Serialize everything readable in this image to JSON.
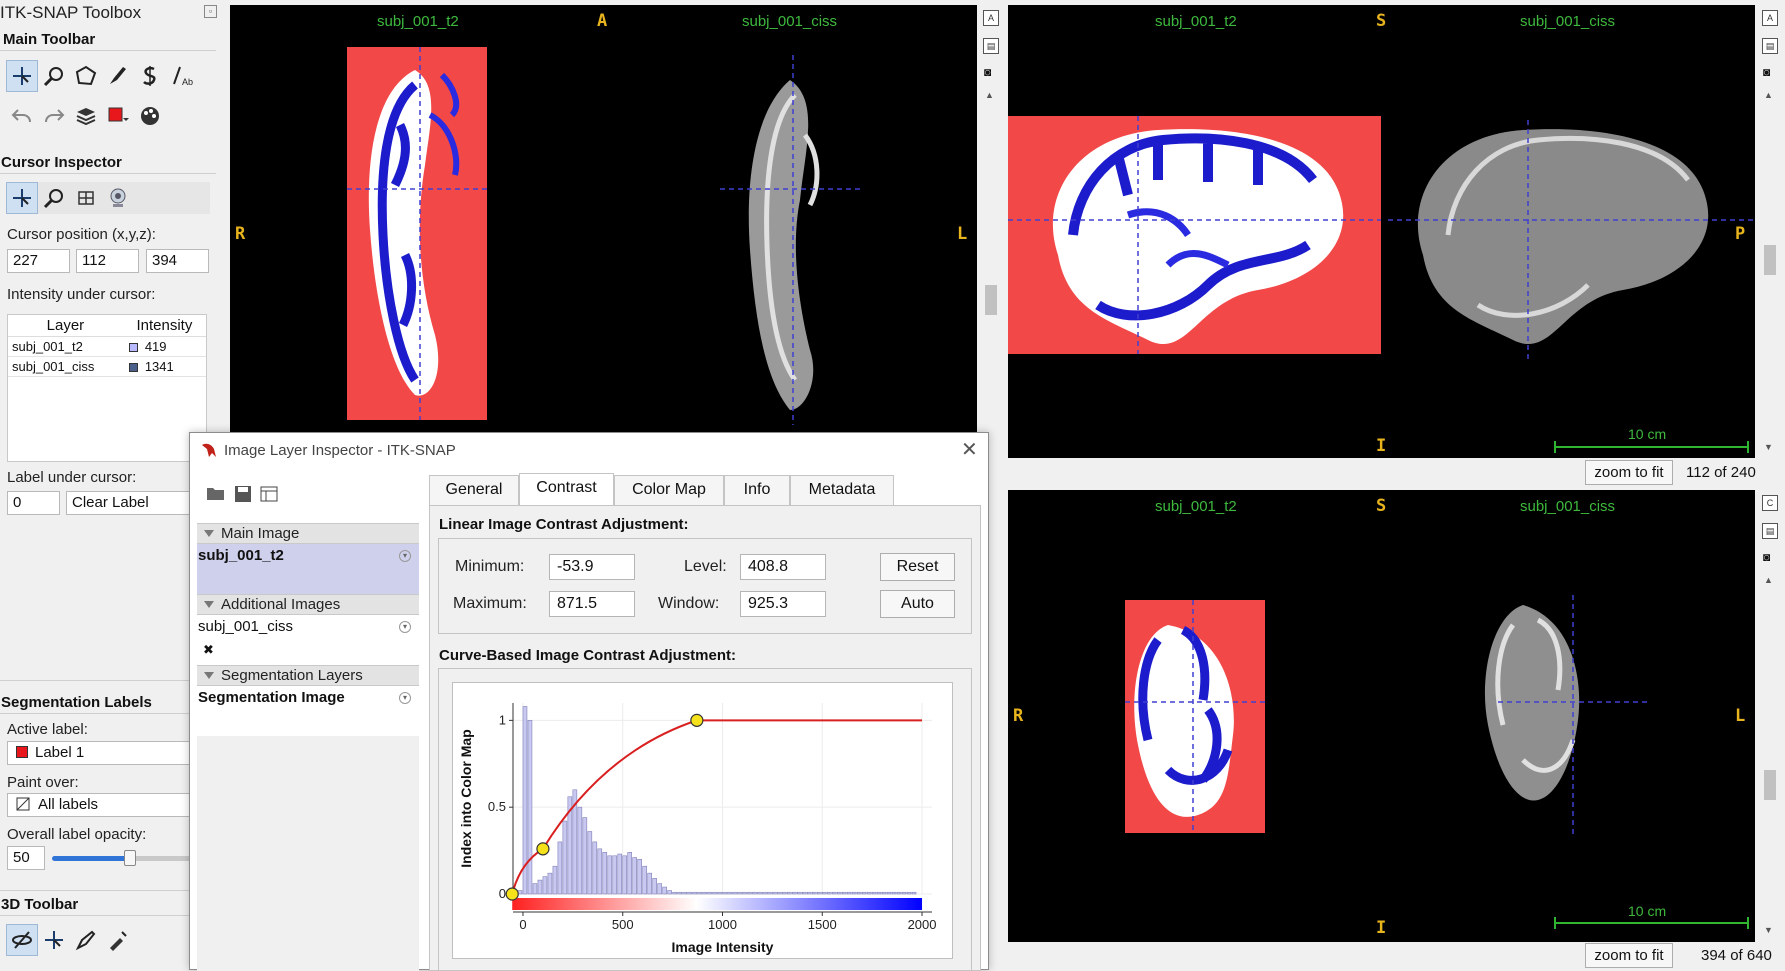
{
  "toolbox": {
    "title": "ITK-SNAP Toolbox",
    "main_toolbar_title": "Main Toolbar",
    "cursor_inspector_title": "Cursor Inspector",
    "cursor_position_label": "Cursor position (x,y,z):",
    "cursor_x": "227",
    "cursor_y": "112",
    "cursor_z": "394",
    "intensity_label": "Intensity under cursor:",
    "table_headers": [
      "Layer",
      "Intensity"
    ],
    "rows": [
      {
        "layer": "subj_001_t2",
        "intensity": "419",
        "color": "#b8b8ff"
      },
      {
        "layer": "subj_001_ciss",
        "intensity": "1341",
        "color": "#4a5f8a"
      }
    ],
    "label_under_cursor_label": "Label under cursor:",
    "label_id": "0",
    "label_name": "Clear Label",
    "seg_labels_title": "Segmentation Labels",
    "active_label_label": "Active label:",
    "active_label": "Label 1",
    "active_label_color": "#e8171b",
    "paint_over_label": "Paint over:",
    "paint_over": "All labels",
    "opacity_label": "Overall label opacity:",
    "opacity_value": "50",
    "opacity_fraction": 0.5,
    "toolbar3d_title": "3D Toolbar",
    "main_tools": [
      "crosshair-icon",
      "zoom-icon",
      "polygon-icon",
      "paintbrush-icon",
      "snake-icon",
      "annotation-icon"
    ],
    "secondary_tools": [
      "undo-icon",
      "redo-icon",
      "layers-icon",
      "label-color-icon",
      "palette-icon"
    ],
    "inspector_tools": [
      "crosshair-icon",
      "zoom-icon",
      "grid-icon",
      "webcam-icon"
    ],
    "tools_3d": [
      "rotate-icon",
      "crosshair-3d-icon",
      "scalpel-icon",
      "spray-icon"
    ]
  },
  "viewers": {
    "axial": {
      "left_name": "subj_001_t2",
      "right_name": "subj_001_ciss",
      "top": "A",
      "left": "R",
      "right": "L"
    },
    "sagittal": {
      "left_name": "subj_001_t2",
      "right_name": "subj_001_ciss",
      "top": "S",
      "bottom": "I",
      "left": "A",
      "right": "P",
      "scale": "10 cm",
      "zoom_button": "zoom to fit",
      "slice": "112 of 240"
    },
    "coronal": {
      "left_name": "subj_001_t2",
      "right_name": "subj_001_ciss",
      "top": "S",
      "bottom": "I",
      "left": "R",
      "right": "L",
      "scale": "10 cm",
      "zoom_button": "zoom to fit",
      "slice": "394 of 640"
    }
  },
  "dialog": {
    "title": "Image Layer Inspector - ITK-SNAP",
    "groups": {
      "main": "Main Image",
      "additional": "Additional Images",
      "segmentation": "Segmentation Layers"
    },
    "layers": {
      "main": "subj_001_t2",
      "additional": "subj_001_ciss",
      "segmentation": "Segmentation Image"
    },
    "tabs": [
      "General",
      "Contrast",
      "Color Map",
      "Info",
      "Metadata"
    ],
    "active_tab": "Contrast",
    "linear_title": "Linear Image Contrast Adjustment:",
    "minimum_label": "Minimum:",
    "minimum": "-53.9",
    "maximum_label": "Maximum:",
    "maximum": "871.5",
    "level_label": "Level:",
    "level": "408.8",
    "window_label": "Window:",
    "window": "925.3",
    "reset_button": "Reset",
    "auto_button": "Auto",
    "curve_title": "Curve-Based Image Contrast Adjustment:"
  },
  "chart_data": {
    "type": "bar",
    "xlabel": "Image Intensity",
    "ylabel": "Index into Color Map",
    "xlim": [
      -50,
      2050
    ],
    "ylim": [
      0,
      1.1
    ],
    "xticks": [
      "0",
      "500",
      "1000",
      "1500",
      "2000"
    ],
    "yticks": [
      "0",
      "0.5",
      "1"
    ],
    "histogram": {
      "bin_width": 25,
      "x": [
        -25,
        0,
        25,
        50,
        75,
        100,
        125,
        150,
        175,
        200,
        225,
        250,
        275,
        300,
        325,
        350,
        375,
        400,
        425,
        450,
        475,
        500,
        525,
        550,
        575,
        600,
        625,
        650,
        675,
        700,
        725,
        750,
        775,
        800,
        825,
        850,
        875,
        900,
        925,
        950,
        975,
        1000,
        1025,
        1050,
        1075,
        1100,
        1125,
        1150,
        1175,
        1200,
        1225,
        1250,
        1275,
        1300,
        1325,
        1350,
        1375,
        1400,
        1425,
        1450,
        1475,
        1500,
        1525,
        1550,
        1575,
        1600,
        1625,
        1650,
        1675,
        1700,
        1725,
        1750,
        1775,
        1800,
        1825,
        1850,
        1875,
        1900,
        1925,
        1950
      ],
      "values": [
        0.02,
        1.08,
        1.0,
        0.06,
        0.08,
        0.1,
        0.12,
        0.16,
        0.3,
        0.42,
        0.56,
        0.6,
        0.5,
        0.44,
        0.36,
        0.3,
        0.26,
        0.24,
        0.22,
        0.22,
        0.23,
        0.22,
        0.24,
        0.21,
        0.2,
        0.16,
        0.12,
        0.09,
        0.06,
        0.04,
        0.02,
        0.01,
        0.01,
        0.01,
        0.01,
        0.01,
        0.01,
        0.01,
        0.01,
        0.01,
        0.01,
        0.01,
        0.01,
        0.01,
        0.01,
        0.01,
        0.01,
        0.01,
        0.01,
        0.01,
        0.01,
        0.01,
        0.01,
        0.01,
        0.01,
        0.01,
        0.01,
        0.01,
        0.01,
        0.01,
        0.01,
        0.01,
        0.01,
        0.01,
        0.01,
        0.01,
        0.01,
        0.01,
        0.01,
        0.01,
        0.01,
        0.01,
        0.01,
        0.01,
        0.01,
        0.01,
        0.01,
        0.01,
        0.01,
        0.01
      ],
      "color": "#c8c8f0"
    },
    "curve": {
      "control_points": [
        {
          "x": -53.9,
          "y": 0
        },
        {
          "x": 100,
          "y": 0.26
        },
        {
          "x": 871.5,
          "y": 1.0
        }
      ],
      "end_x": 2000,
      "color": "#d92020"
    },
    "colorbar": [
      "#ff2020",
      "#ffffff",
      "#0000ff"
    ]
  }
}
